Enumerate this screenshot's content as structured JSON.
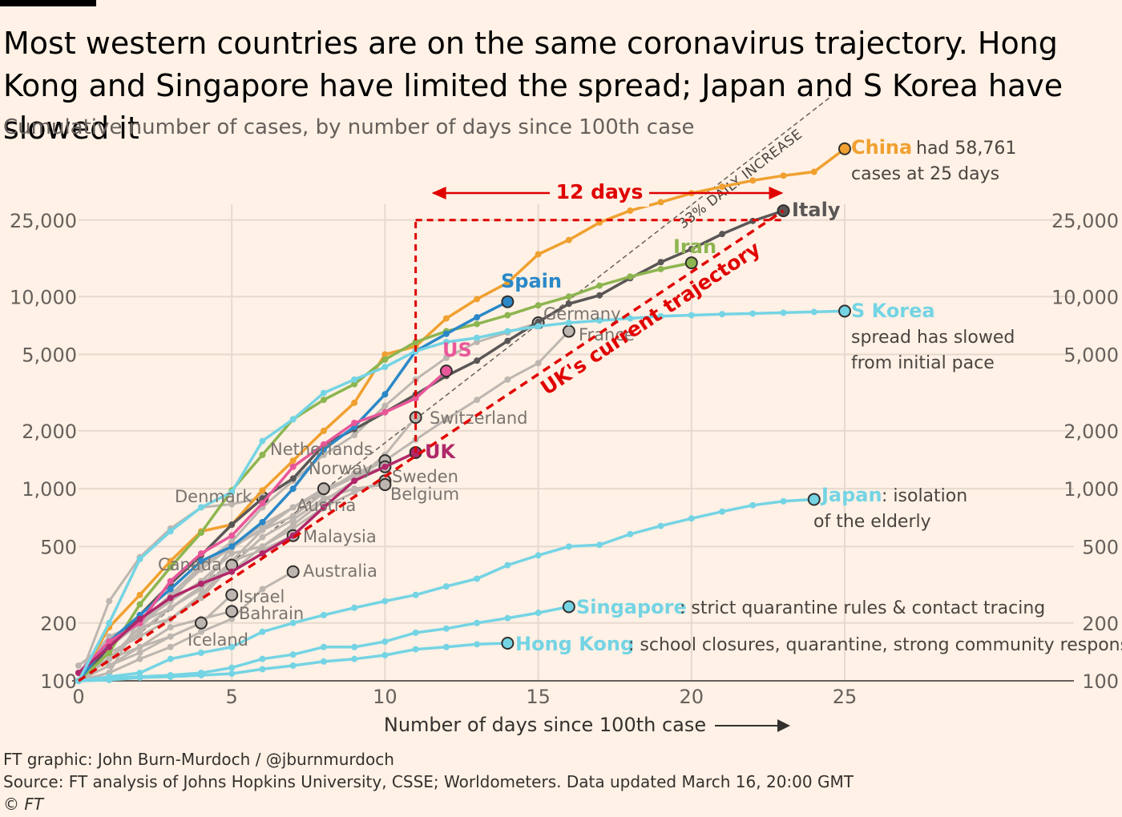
{
  "header": {
    "title": "Most western countries are on the same coronavirus trajectory. Hong Kong and Singapore have limited the spread; Japan and S Korea have slowed it",
    "subtitle": "Cumulative number of cases, by number of days since 100th case"
  },
  "footer": {
    "credit": "FT graphic: John Burn-Murdoch / @jburnmurdoch",
    "source": "Source: FT analysis of Johns Hopkins University, CSSE; Worldometers. Data updated March 16, 20:00 GMT",
    "copyright": "© FT"
  },
  "colors": {
    "background": "#FFF1E5",
    "grid": "#E6D9CE",
    "china": "#F0A030",
    "italy": "#5A5656",
    "iran": "#8DB550",
    "spain": "#2A88C8",
    "us": "#E8579A",
    "uk": "#B0286A",
    "skorea": "#74D4E4",
    "gray": "#BDB6B0",
    "highlight": "#E00000"
  },
  "chart_data": {
    "type": "line",
    "x_scale": "linear",
    "y_scale": "log",
    "xlim": [
      0,
      30
    ],
    "ylim": [
      100,
      60000
    ],
    "xlabel": "Number of days since 100th case",
    "xticks": [
      0,
      5,
      10,
      15,
      20,
      25
    ],
    "yticks": [
      {
        "value": 100,
        "label": "100"
      },
      {
        "value": 200,
        "label": "200"
      },
      {
        "value": 500,
        "label": "500"
      },
      {
        "value": 1000,
        "label": "1,000"
      },
      {
        "value": 2000,
        "label": "2,000"
      },
      {
        "value": 5000,
        "label": "5,000"
      },
      {
        "value": 10000,
        "label": "10,000"
      },
      {
        "value": 25000,
        "label": "25,000"
      }
    ],
    "reference_line": {
      "label": "33% DAILY INCREASE",
      "daily_growth": 1.33,
      "start": [
        0,
        100
      ],
      "end_x": 23
    },
    "annotations": {
      "uk_trajectory_label": "UK's current trajectory",
      "gap_label": "12 days",
      "gap": {
        "from_day": 11,
        "to_day": 23,
        "value": 25000
      }
    },
    "series": [
      {
        "name": "China",
        "key": "china",
        "color_key": "china",
        "label_style": "bold",
        "label_side": "right",
        "note": "had 58,761 cases at 25 days",
        "x": [
          0,
          1,
          2,
          3,
          4,
          5,
          6,
          7,
          8,
          9,
          10,
          11,
          12,
          13,
          14,
          15,
          16,
          17,
          18,
          19,
          20,
          21,
          22,
          23,
          24,
          25
        ],
        "y": [
          100,
          190,
          280,
          420,
          600,
          650,
          980,
          1400,
          2000,
          2800,
          5000,
          5500,
          7700,
          9700,
          11800,
          16600,
          19700,
          24300,
          28000,
          31000,
          34500,
          37300,
          40200,
          42600,
          44600,
          58761
        ]
      },
      {
        "name": "Italy",
        "key": "italy",
        "color_key": "italy",
        "label_style": "bold",
        "label_side": "right",
        "x": [
          0,
          1,
          2,
          3,
          4,
          5,
          6,
          7,
          8,
          9,
          10,
          11,
          12,
          13,
          14,
          15,
          16,
          17,
          18,
          19,
          20,
          21,
          22,
          23
        ],
        "y": [
          100,
          150,
          220,
          320,
          450,
          650,
          890,
          1130,
          1690,
          2040,
          2500,
          3090,
          3860,
          4640,
          5880,
          7380,
          9170,
          10150,
          12460,
          15110,
          17660,
          21160,
          24750,
          27980
        ]
      },
      {
        "name": "Iran",
        "key": "iran",
        "color_key": "iran",
        "label_style": "bold",
        "label_side": "above",
        "x": [
          0,
          1,
          2,
          3,
          4,
          5,
          6,
          7,
          8,
          9,
          10,
          11,
          12,
          13,
          14,
          15,
          16,
          17,
          18,
          19,
          20
        ],
        "y": [
          100,
          140,
          250,
          390,
          590,
          980,
          1500,
          2300,
          2900,
          3500,
          4700,
          5800,
          6600,
          7200,
          8000,
          9000,
          10000,
          11400,
          12700,
          13900,
          14990
        ]
      },
      {
        "name": "Spain",
        "key": "spain",
        "color_key": "spain",
        "label_style": "bold",
        "label_side": "above",
        "x": [
          0,
          1,
          2,
          3,
          4,
          5,
          6,
          7,
          8,
          9,
          10,
          11,
          12,
          13,
          14
        ],
        "y": [
          100,
          160,
          220,
          300,
          420,
          500,
          670,
          1000,
          1600,
          2100,
          3100,
          5200,
          6400,
          7800,
          9400
        ]
      },
      {
        "name": "US",
        "key": "us",
        "color_key": "us",
        "label_style": "bold",
        "label_side": "above",
        "x": [
          0,
          1,
          2,
          3,
          4,
          5,
          6,
          7,
          8,
          9,
          10,
          11,
          12
        ],
        "y": [
          110,
          160,
          200,
          330,
          460,
          570,
          840,
          1300,
          1700,
          2200,
          2500,
          2950,
          4100
        ]
      },
      {
        "name": "UK",
        "key": "uk",
        "color_key": "uk",
        "label_style": "bold",
        "label_side": "right",
        "x": [
          0,
          1,
          2,
          3,
          4,
          5,
          6,
          7,
          8,
          9,
          10,
          11
        ],
        "y": [
          110,
          150,
          210,
          270,
          320,
          370,
          460,
          570,
          800,
          1100,
          1300,
          1543
        ]
      },
      {
        "name": "S Korea",
        "key": "skorea",
        "color_key": "skorea",
        "label_style": "bold",
        "label_side": "right",
        "note": "spread has slowed from initial pace",
        "x": [
          0,
          1,
          2,
          3,
          4,
          5,
          6,
          7,
          8,
          9,
          10,
          11,
          12,
          13,
          14,
          15,
          16,
          17,
          18,
          19,
          20,
          21,
          22,
          23,
          24,
          25
        ],
        "y": [
          100,
          200,
          430,
          600,
          800,
          960,
          1770,
          2300,
          3150,
          3700,
          4300,
          5200,
          5800,
          6100,
          6600,
          7000,
          7300,
          7500,
          7700,
          7900,
          8000,
          8100,
          8160,
          8240,
          8320,
          8400
        ]
      },
      {
        "name": "Japan",
        "key": "japan",
        "color_key": "skorea",
        "label_style": "bold",
        "label_side": "right",
        "note": ": isolation of the elderly",
        "x": [
          0,
          1,
          2,
          3,
          4,
          5,
          6,
          7,
          8,
          9,
          10,
          11,
          12,
          13,
          14,
          15,
          16,
          17,
          18,
          19,
          20,
          21,
          22,
          23,
          24
        ],
        "y": [
          100,
          105,
          110,
          130,
          140,
          150,
          180,
          200,
          220,
          240,
          260,
          280,
          310,
          340,
          400,
          450,
          500,
          510,
          580,
          640,
          700,
          760,
          820,
          860,
          880
        ]
      },
      {
        "name": "Singapore",
        "key": "singapore",
        "color_key": "skorea",
        "label_style": "bold",
        "label_side": "right",
        "note": ": strict quarantine rules & contact tracing",
        "x": [
          0,
          1,
          2,
          3,
          4,
          5,
          6,
          7,
          8,
          9,
          10,
          11,
          12,
          13,
          14,
          15,
          16
        ],
        "y": [
          100,
          103,
          105,
          107,
          110,
          117,
          130,
          137,
          150,
          150,
          160,
          178,
          187,
          200,
          212,
          226,
          243
        ]
      },
      {
        "name": "Hong Kong",
        "key": "hongkong",
        "color_key": "skorea",
        "label_style": "bold",
        "label_side": "right",
        "note": ": school closures, quarantine, strong community response",
        "x": [
          0,
          1,
          2,
          3,
          4,
          5,
          6,
          7,
          8,
          9,
          10,
          11,
          12,
          13,
          14
        ],
        "y": [
          100,
          101,
          104,
          105,
          107,
          109,
          115,
          120,
          126,
          130,
          136,
          146,
          150,
          155,
          157
        ]
      },
      {
        "name": "Germany",
        "key": "germany",
        "color_key": "gray",
        "label_style": "normal",
        "label_side": "above",
        "x": [
          0,
          1,
          2,
          3,
          4,
          5,
          6,
          7,
          8,
          9,
          10,
          11,
          12,
          13,
          14,
          15
        ],
        "y": [
          120,
          160,
          200,
          260,
          400,
          530,
          800,
          1100,
          1500,
          1900,
          2700,
          3700,
          4800,
          5800,
          6500,
          7300
        ]
      },
      {
        "name": "France",
        "key": "france",
        "color_key": "gray",
        "label_style": "normal",
        "label_side": "right",
        "x": [
          0,
          1,
          2,
          3,
          4,
          5,
          6,
          7,
          8,
          9,
          10,
          11,
          12,
          13,
          14,
          15,
          16
        ],
        "y": [
          100,
          130,
          190,
          210,
          280,
          420,
          610,
          720,
          950,
          1200,
          1400,
          1800,
          2300,
          2900,
          3700,
          4500,
          6600
        ]
      },
      {
        "name": "Switzerland",
        "key": "switzerland",
        "color_key": "gray",
        "label_style": "normal",
        "label_side": "right",
        "x": [
          0,
          1,
          2,
          3,
          4,
          5,
          6,
          7,
          8,
          9,
          10,
          11
        ],
        "y": [
          100,
          110,
          210,
          260,
          330,
          370,
          500,
          650,
          860,
          1100,
          1500,
          2350
        ]
      },
      {
        "name": "Netherlands",
        "key": "netherlands",
        "color_key": "gray",
        "label_style": "normal",
        "label_side": "left",
        "x": [
          0,
          1,
          2,
          3,
          4,
          5,
          6,
          7,
          8,
          9,
          10
        ],
        "y": [
          100,
          130,
          190,
          270,
          380,
          500,
          610,
          800,
          960,
          1150,
          1400
        ]
      },
      {
        "name": "Norway",
        "key": "norway",
        "color_key": "gray",
        "label_style": "normal",
        "label_side": "left",
        "x": [
          0,
          1,
          2,
          3,
          4,
          5,
          6,
          7,
          8,
          9,
          10
        ],
        "y": [
          110,
          150,
          200,
          280,
          400,
          490,
          620,
          800,
          1000,
          1150,
          1300
        ]
      },
      {
        "name": "Sweden",
        "key": "sweden",
        "color_key": "gray",
        "label_style": "normal",
        "label_side": "right",
        "x": [
          0,
          1,
          2,
          3,
          4,
          5,
          6,
          7,
          8,
          9,
          10
        ],
        "y": [
          100,
          160,
          200,
          260,
          330,
          460,
          500,
          620,
          800,
          960,
          1100
        ]
      },
      {
        "name": "Belgium",
        "key": "belgium",
        "color_key": "gray",
        "label_style": "normal",
        "label_side": "below",
        "x": [
          0,
          1,
          2,
          3,
          4,
          5,
          6,
          7,
          8,
          9,
          10
        ],
        "y": [
          110,
          170,
          200,
          240,
          310,
          400,
          560,
          690,
          890,
          1000,
          1050
        ]
      },
      {
        "name": "Denmark",
        "key": "denmark",
        "color_key": "gray",
        "label_style": "normal",
        "label_side": "left",
        "x": [
          0,
          1,
          2,
          3,
          4,
          5,
          6
        ],
        "y": [
          100,
          260,
          440,
          620,
          800,
          830,
          900
        ]
      },
      {
        "name": "Austria",
        "key": "austria",
        "color_key": "gray",
        "label_style": "normal",
        "label_side": "below",
        "x": [
          0,
          1,
          2,
          3,
          4,
          5,
          6,
          7,
          8
        ],
        "y": [
          100,
          130,
          180,
          240,
          300,
          500,
          650,
          800,
          1000
        ]
      },
      {
        "name": "Malaysia",
        "key": "malaysia",
        "color_key": "gray",
        "label_style": "normal",
        "label_side": "right",
        "x": [
          0,
          1,
          2,
          3,
          4,
          5,
          6,
          7
        ],
        "y": [
          110,
          130,
          180,
          240,
          300,
          420,
          480,
          570
        ]
      },
      {
        "name": "Canada",
        "key": "canada",
        "color_key": "gray",
        "label_style": "normal",
        "label_side": "left",
        "x": [
          0,
          1,
          2,
          3,
          4,
          5
        ],
        "y": [
          110,
          140,
          170,
          210,
          270,
          400
        ]
      },
      {
        "name": "Australia",
        "key": "australia",
        "color_key": "gray",
        "label_style": "normal",
        "label_side": "right",
        "x": [
          0,
          1,
          2,
          3,
          4,
          5,
          6,
          7
        ],
        "y": [
          100,
          110,
          130,
          150,
          180,
          210,
          300,
          370
        ]
      },
      {
        "name": "Israel",
        "key": "israel",
        "color_key": "gray",
        "label_style": "normal",
        "label_side": "right",
        "x": [
          0,
          1,
          2,
          3,
          4,
          5
        ],
        "y": [
          100,
          120,
          140,
          170,
          200,
          280
        ]
      },
      {
        "name": "Bahrain",
        "key": "bahrain",
        "color_key": "gray",
        "label_style": "normal",
        "label_side": "right",
        "x": [
          0,
          1,
          2,
          3,
          4,
          5
        ],
        "y": [
          100,
          130,
          150,
          190,
          210,
          230
        ]
      },
      {
        "name": "Iceland",
        "key": "iceland",
        "color_key": "gray",
        "label_style": "normal",
        "label_side": "below",
        "x": [
          0,
          1,
          2,
          3,
          4
        ],
        "y": [
          100,
          120,
          150,
          170,
          200
        ]
      }
    ]
  }
}
